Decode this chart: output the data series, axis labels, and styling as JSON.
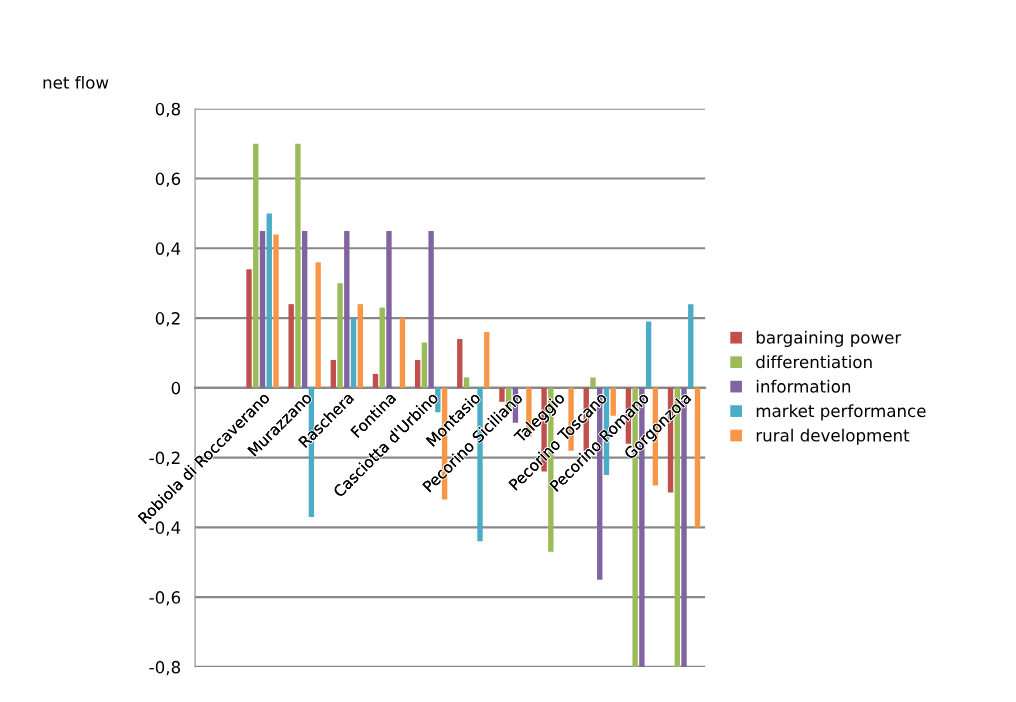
{
  "chart_data": {
    "type": "bar",
    "ylabel": "net flow",
    "categories": [
      "Robiola di Roccaverano",
      "Murazzano",
      "Raschera",
      "Fontina",
      "Casciotta d'Urbino",
      "Montasio",
      "Pecorino Siciliano",
      "Taleggio",
      "Pecorino Toscano",
      "Pecorino Romano",
      "Gorgonzola"
    ],
    "series": [
      {
        "name": "bargaining power",
        "color": "#c0504d",
        "values": [
          0.34,
          0.24,
          0.08,
          0.04,
          0.08,
          0.14,
          -0.04,
          -0.24,
          -0.18,
          -0.16,
          -0.3
        ]
      },
      {
        "name": "differentiation",
        "color": "#9bbb59",
        "values": [
          0.7,
          0.7,
          0.3,
          0.23,
          0.13,
          0.03,
          -0.07,
          -0.47,
          0.03,
          -0.8,
          -0.8
        ]
      },
      {
        "name": "information",
        "color": "#8064a2",
        "values": [
          0.45,
          0.45,
          0.45,
          0.45,
          0.45,
          0,
          -0.1,
          0,
          -0.55,
          -0.8,
          -0.8
        ]
      },
      {
        "name": "market performance",
        "color": "#4bacc6",
        "values": [
          0.5,
          -0.37,
          0.2,
          0,
          -0.07,
          -0.44,
          0,
          0,
          -0.25,
          0.19,
          0.24
        ]
      },
      {
        "name": "rural development",
        "color": "#f79646",
        "values": [
          0.44,
          0.36,
          0.24,
          0.2,
          -0.32,
          0.16,
          -0.14,
          -0.18,
          -0.08,
          -0.28,
          -0.4
        ]
      }
    ],
    "ylim": [
      -0.8,
      0.8
    ],
    "yticks": [
      {
        "value": -0.8,
        "label": "-0,8"
      },
      {
        "value": -0.6,
        "label": "-0,6"
      },
      {
        "value": -0.4,
        "label": "-0,4"
      },
      {
        "value": -0.2,
        "label": "-0,2"
      },
      {
        "value": 0,
        "label": "0"
      },
      {
        "value": 0.2,
        "label": "0,2"
      },
      {
        "value": 0.4,
        "label": "0,4"
      },
      {
        "value": 0.6,
        "label": "0,6"
      },
      {
        "value": 0.8,
        "label": "0,8"
      }
    ],
    "grid": "y",
    "legend": "right"
  }
}
